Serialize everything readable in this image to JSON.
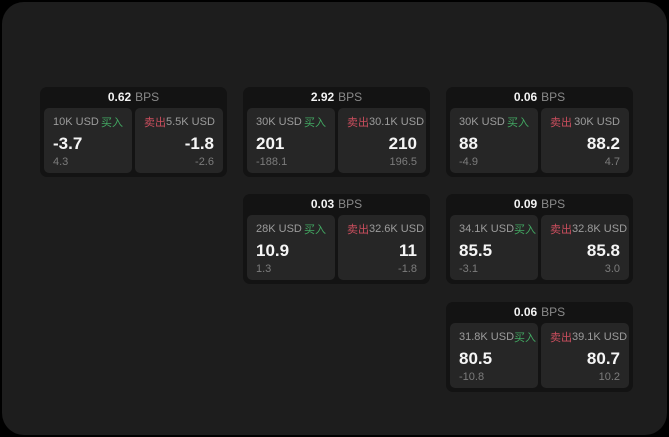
{
  "colors": {
    "buy": "#42a862",
    "sell": "#cb4e5e",
    "frame_bg": "#1d1d1d",
    "card_bg": "#131313",
    "panel_bg": "#262626"
  },
  "labels": {
    "bps": "BPS",
    "buy": "买入",
    "sell": "卖出"
  },
  "cards": [
    {
      "bps": "0.62",
      "row": 1,
      "col": 1,
      "buy": {
        "amount": "10K USD",
        "value": "-3.7",
        "sub": "4.3"
      },
      "sell": {
        "amount": "5.5K USD",
        "value": "-1.8",
        "sub": "-2.6"
      }
    },
    {
      "bps": "2.92",
      "row": 1,
      "col": 2,
      "buy": {
        "amount": "30K USD",
        "value": "201",
        "sub": "-188.1"
      },
      "sell": {
        "amount": "30.1K USD",
        "value": "210",
        "sub": "196.5"
      }
    },
    {
      "bps": "0.06",
      "row": 1,
      "col": 3,
      "buy": {
        "amount": "30K USD",
        "value": "88",
        "sub": "-4.9"
      },
      "sell": {
        "amount": "30K USD",
        "value": "88.2",
        "sub": "4.7"
      }
    },
    {
      "bps": "0.03",
      "row": 2,
      "col": 2,
      "buy": {
        "amount": "28K USD",
        "value": "10.9",
        "sub": "1.3"
      },
      "sell": {
        "amount": "32.6K USD",
        "value": "11",
        "sub": "-1.8"
      }
    },
    {
      "bps": "0.09",
      "row": 2,
      "col": 3,
      "buy": {
        "amount": "34.1K USD",
        "value": "85.5",
        "sub": "-3.1"
      },
      "sell": {
        "amount": "32.8K USD",
        "value": "85.8",
        "sub": "3.0"
      }
    },
    {
      "bps": "0.06",
      "row": 3,
      "col": 3,
      "buy": {
        "amount": "31.8K USD",
        "value": "80.5",
        "sub": "-10.8"
      },
      "sell": {
        "amount": "39.1K USD",
        "value": "80.7",
        "sub": "10.2"
      }
    }
  ]
}
